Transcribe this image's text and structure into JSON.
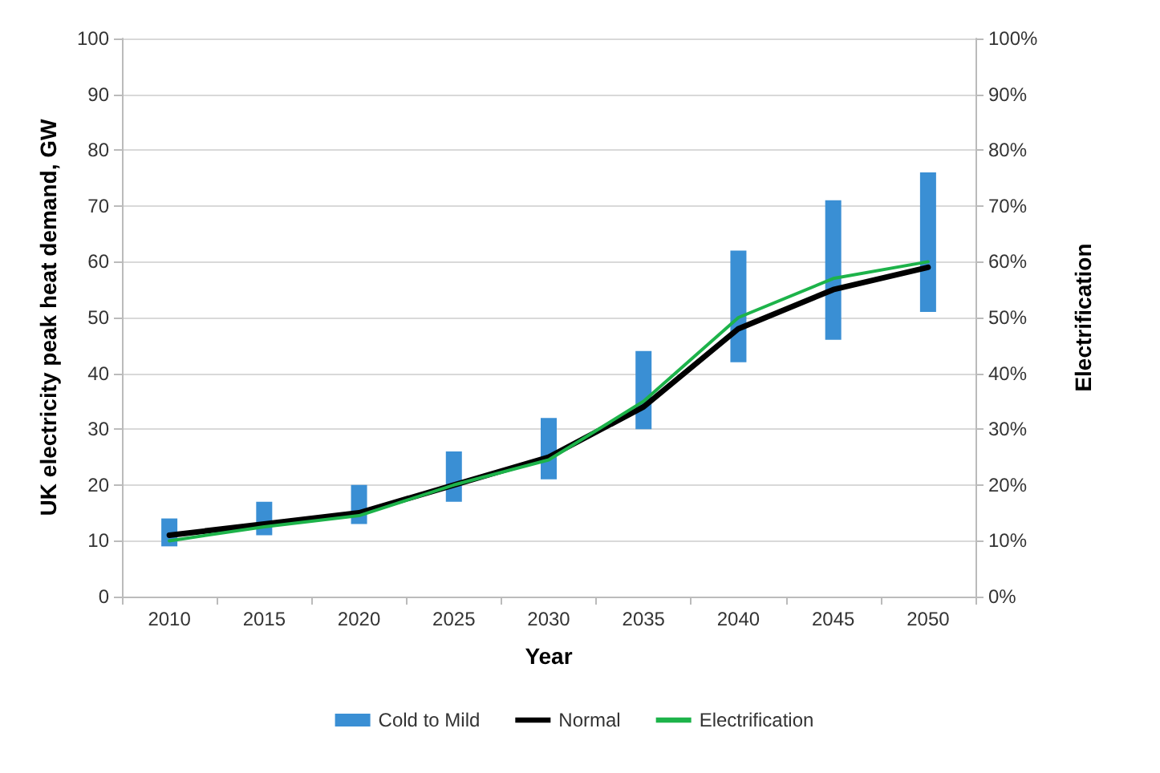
{
  "chart_data": {
    "type": "line",
    "xlabel": "Year",
    "ylabel": "UK electricity peak heat demand, GW",
    "y2label": "Electrification",
    "categories": [
      "2010",
      "2015",
      "2020",
      "2025",
      "2030",
      "2035",
      "2040",
      "2045",
      "2050"
    ],
    "series": [
      {
        "name": "Cold to Mild",
        "type": "bar",
        "color": "#3a8fd4",
        "base": [
          9,
          11,
          13,
          17,
          21,
          30,
          42,
          46,
          51
        ],
        "values": [
          5,
          6,
          7,
          9,
          11,
          14,
          20,
          25,
          25
        ]
      },
      {
        "name": "Normal",
        "color": "#000000",
        "values": [
          11,
          13,
          15,
          20,
          25,
          34,
          48,
          55,
          59
        ]
      },
      {
        "name": "Electrification",
        "color": "#1db34a",
        "values": [
          10,
          12.5,
          14.5,
          20,
          24.5,
          35,
          50,
          57,
          60
        ]
      }
    ],
    "ylim": [
      0,
      100
    ],
    "yticks": [
      0,
      10,
      20,
      30,
      40,
      50,
      60,
      70,
      80,
      90,
      100
    ],
    "y2lim": [
      0,
      100
    ],
    "y2ticks": [
      {
        "value": 0,
        "label": "0%"
      },
      {
        "value": 10,
        "label": "10%"
      },
      {
        "value": 20,
        "label": "20%"
      },
      {
        "value": 30,
        "label": "30%"
      },
      {
        "value": 40,
        "label": "40%"
      },
      {
        "value": 50,
        "label": "50%"
      },
      {
        "value": 60,
        "label": "60%"
      },
      {
        "value": 70,
        "label": "70%"
      },
      {
        "value": 80,
        "label": "80%"
      },
      {
        "value": 90,
        "label": "90%"
      },
      {
        "value": 100,
        "label": "100%"
      }
    ],
    "grid": "y",
    "legend": "bottom",
    "marker": "none",
    "line_style": "solid"
  }
}
